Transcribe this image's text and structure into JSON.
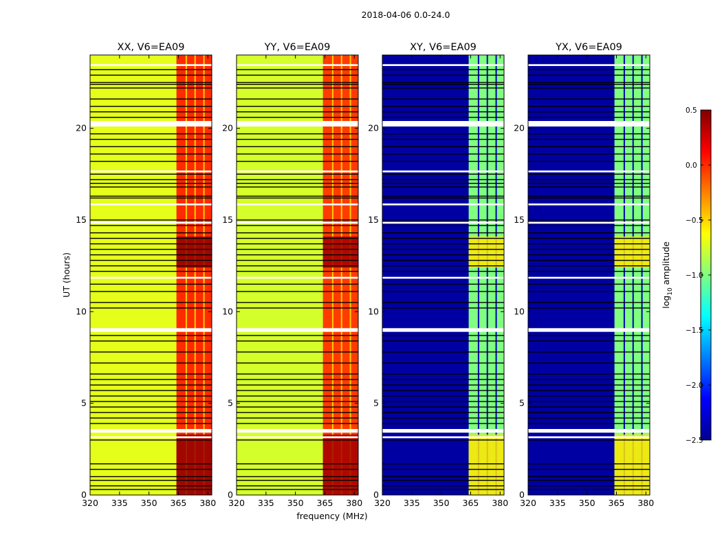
{
  "figure": {
    "title": "2018-04-06 0.0-24.0",
    "xlabel": "frequency (MHz)",
    "ylabel": "UT (hours)"
  },
  "colorbar": {
    "label_prefix": "log",
    "label_sub": "10",
    "label_suffix": " amplitude",
    "range": [
      -2.5,
      0.5
    ],
    "ticks": [
      "0.5",
      "0.0",
      "−0.5",
      "−1.0",
      "−1.5",
      "−2.0",
      "−2.5"
    ],
    "tick_values": [
      0.5,
      0.0,
      -0.5,
      -1.0,
      -1.5,
      -2.0,
      -2.5
    ],
    "colormap": "jet"
  },
  "chart_data": [
    {
      "type": "heatmap",
      "title": "XX, V6=EA09",
      "x_range": [
        320,
        382
      ],
      "y_range": [
        0,
        24
      ],
      "x_ticks": [
        "320",
        "335",
        "350",
        "365",
        "380"
      ],
      "x_tick_values": [
        320,
        335,
        350,
        365,
        380
      ],
      "y_ticks": [
        "0",
        "5",
        "10",
        "15",
        "20"
      ],
      "y_tick_values": [
        0,
        5,
        10,
        15,
        20
      ],
      "background_log_amp": -0.7,
      "band_364_382_log_amp": 0.0,
      "bright_intervals_hours": [
        [
          0.0,
          3.3
        ],
        [
          12.4,
          14.1
        ]
      ]
    },
    {
      "type": "heatmap",
      "title": "YY, V6=EA09",
      "x_range": [
        320,
        382
      ],
      "y_range": [
        0,
        24
      ],
      "x_ticks": [
        "320",
        "335",
        "350",
        "365",
        "380"
      ],
      "x_tick_values": [
        320,
        335,
        350,
        365,
        380
      ],
      "y_ticks": [
        "0",
        "5",
        "10",
        "15",
        "20"
      ],
      "y_tick_values": [
        0,
        5,
        10,
        15,
        20
      ],
      "background_log_amp": -0.75,
      "band_364_382_log_amp": -0.05,
      "bright_intervals_hours": [
        [
          0.0,
          3.3
        ],
        [
          12.4,
          14.1
        ]
      ]
    },
    {
      "type": "heatmap",
      "title": "XY, V6=EA09",
      "x_range": [
        320,
        382
      ],
      "y_range": [
        0,
        24
      ],
      "x_ticks": [
        "320",
        "335",
        "350",
        "365",
        "380"
      ],
      "x_tick_values": [
        320,
        335,
        350,
        365,
        380
      ],
      "y_ticks": [
        "0",
        "5",
        "10",
        "15",
        "20"
      ],
      "y_tick_values": [
        0,
        5,
        10,
        15,
        20
      ],
      "background_log_amp": -2.4,
      "band_364_382_log_amp": -1.0,
      "bright_intervals_hours": [
        [
          0.0,
          3.3
        ],
        [
          12.4,
          14.1
        ]
      ]
    },
    {
      "type": "heatmap",
      "title": "YX, V6=EA09",
      "x_range": [
        320,
        382
      ],
      "y_range": [
        0,
        24
      ],
      "x_ticks": [
        "320",
        "335",
        "350",
        "365",
        "380"
      ],
      "x_tick_values": [
        320,
        335,
        350,
        365,
        380
      ],
      "y_ticks": [
        "0",
        "5",
        "10",
        "15",
        "20"
      ],
      "y_tick_values": [
        0,
        5,
        10,
        15,
        20
      ],
      "background_log_amp": -2.4,
      "band_364_382_log_amp": -1.0,
      "bright_intervals_hours": [
        [
          0.0,
          3.3
        ],
        [
          12.4,
          14.1
        ]
      ]
    }
  ],
  "flagged_rows_hours": {
    "white_gaps": [
      [
        20.1,
        20.4
      ],
      [
        17.6,
        17.7
      ],
      [
        11.8,
        11.9
      ],
      [
        8.9,
        9.1
      ],
      [
        3.4,
        3.6
      ],
      [
        3.1,
        3.2
      ],
      [
        23.4,
        23.5
      ],
      [
        15.8,
        15.9
      ],
      [
        14.8,
        14.9
      ]
    ],
    "black_lines": [
      0.3,
      0.5,
      0.8,
      1.0,
      1.4,
      1.7,
      3.0,
      3.9,
      4.2,
      4.5,
      4.8,
      5.1,
      5.4,
      5.7,
      6.0,
      6.3,
      6.6,
      7.2,
      7.8,
      8.4,
      8.7,
      10.2,
      10.5,
      11.1,
      11.5,
      12.2,
      12.5,
      12.8,
      13.1,
      13.4,
      13.7,
      14.0,
      14.3,
      14.7,
      15.0,
      16.2,
      16.3,
      16.8,
      17.0,
      17.2,
      17.5,
      18.2,
      18.6,
      19.0,
      19.4,
      19.7,
      20.6,
      20.9,
      21.2,
      21.6,
      22.2,
      22.4,
      22.5,
      22.9,
      23.2
    ]
  }
}
